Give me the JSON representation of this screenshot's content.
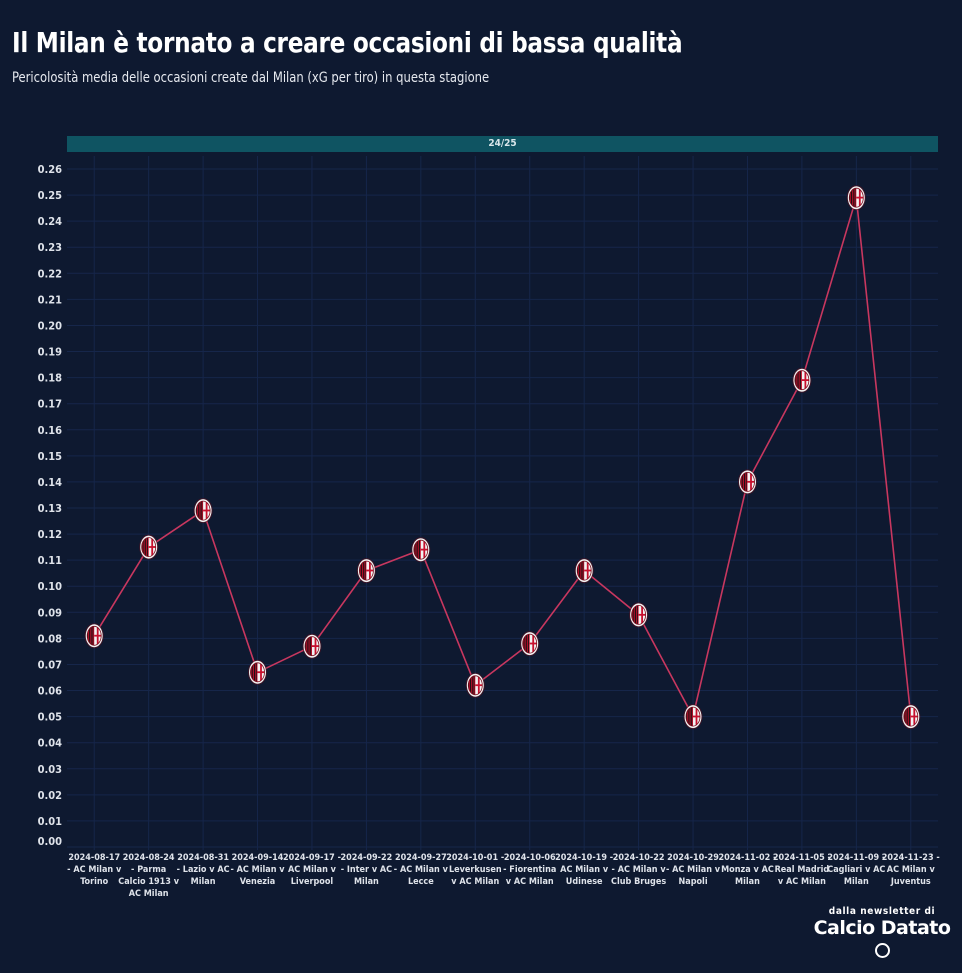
{
  "header": {
    "title": "Il Milan è tornato a creare occasioni di bassa qualità",
    "subtitle": "Pericolosità media delle occasioni create dal Milan (xG per tiro) in questa stagione",
    "facet_label": "24/25"
  },
  "footer": {
    "prefix": "dalla newsletter di",
    "brand": "Calcio Datato"
  },
  "colors": {
    "background": "#0e1930",
    "grid": "#16264a",
    "line": "#c8375f",
    "facet_bar": "#0f5462",
    "marker_red": "#c8102e",
    "marker_black": "#111111",
    "marker_white": "#f2f2f2"
  },
  "chart_data": {
    "type": "line",
    "title": "Il Milan è tornato a creare occasioni di bassa qualità",
    "subtitle": "Pericolosità media delle occasioni create dal Milan (xG per tiro) in questa stagione",
    "facet": "24/25",
    "xlabel": "",
    "ylabel": "",
    "ylim": [
      0,
      0.26
    ],
    "yticks": [
      "0.00",
      "0.01",
      "0.02",
      "0.03",
      "0.04",
      "0.05",
      "0.06",
      "0.07",
      "0.08",
      "0.09",
      "0.10",
      "0.11",
      "0.12",
      "0.13",
      "0.14",
      "0.15",
      "0.16",
      "0.17",
      "0.18",
      "0.19",
      "0.20",
      "0.21",
      "0.22",
      "0.23",
      "0.24",
      "0.25",
      "0.26"
    ],
    "grid": true,
    "legend": "none",
    "marker": "AC Milan crest",
    "categories": [
      [
        "2024-08-17",
        "- AC Milan v",
        "Torino"
      ],
      [
        "2024-08-24",
        "- Parma",
        "Calcio 1913 v",
        "AC Milan"
      ],
      [
        "2024-08-31",
        "- Lazio v AC",
        "Milan"
      ],
      [
        "2024-09-14",
        "- AC Milan v",
        "Venezia"
      ],
      [
        "2024-09-17 -",
        "AC Milan v",
        "Liverpool"
      ],
      [
        "2024-09-22",
        "- Inter v AC",
        "Milan"
      ],
      [
        "2024-09-27",
        "- AC Milan v",
        "Lecce"
      ],
      [
        "2024-10-01 -",
        "Leverkusen",
        "v AC Milan"
      ],
      [
        "2024-10-06",
        "- Fiorentina",
        "v AC Milan"
      ],
      [
        "2024-10-19 -",
        "AC Milan v",
        "Udinese"
      ],
      [
        "2024-10-22",
        "- AC Milan v",
        "Club Bruges"
      ],
      [
        "2024-10-29",
        "- AC Milan v",
        "Napoli"
      ],
      [
        "2024-11-02 -",
        "Monza v AC",
        "Milan"
      ],
      [
        "2024-11-05 -",
        "Real Madrid",
        "v AC Milan"
      ],
      [
        "2024-11-09 -",
        "Cagliari v AC",
        "Milan"
      ],
      [
        "2024-11-23 -",
        "AC Milan v",
        "Juventus"
      ]
    ],
    "series": [
      {
        "name": "xG per tiro",
        "values": [
          0.081,
          0.115,
          0.129,
          0.067,
          0.077,
          0.106,
          0.114,
          0.062,
          0.078,
          0.106,
          0.089,
          0.05,
          0.14,
          0.179,
          0.249,
          0.05
        ]
      }
    ]
  }
}
